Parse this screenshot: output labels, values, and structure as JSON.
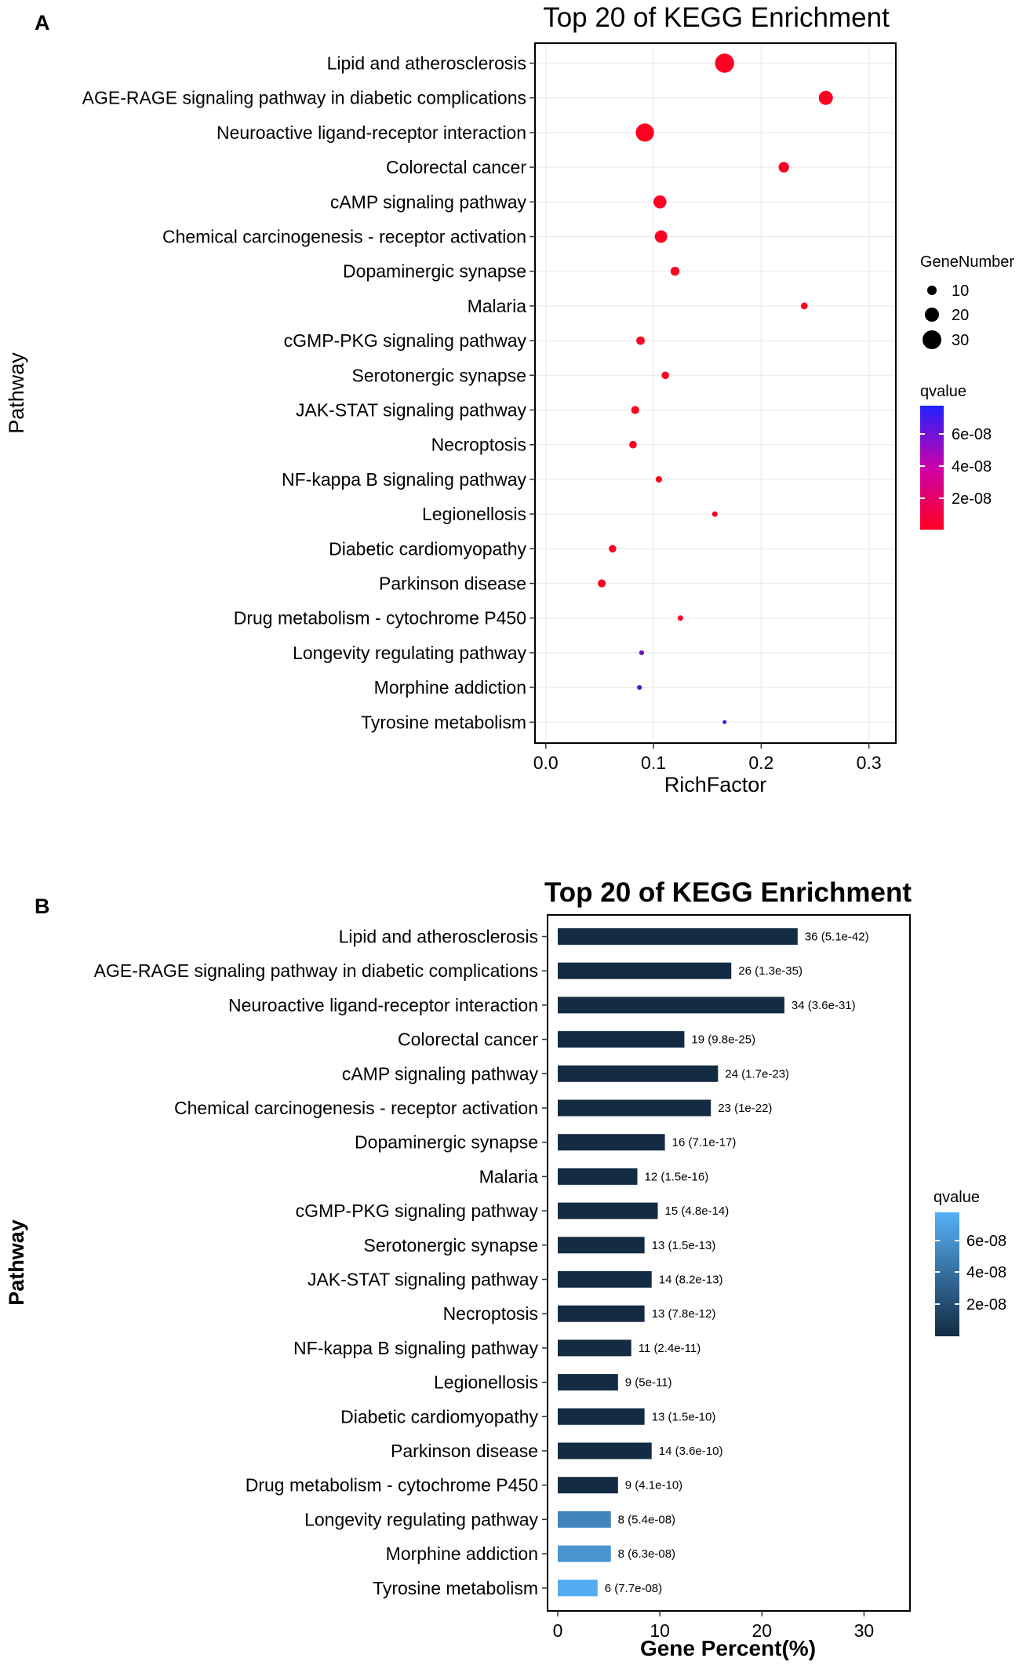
{
  "chart_data": [
    {
      "panel_label": "A",
      "type": "scatter",
      "title": "Top 20 of KEGG Enrichment",
      "xlabel": "RichFactor",
      "ylabel": "Pathway",
      "xlim": [
        -0.01,
        0.325
      ],
      "xticks": [
        "0.0",
        "0.1",
        "0.2",
        "0.3"
      ],
      "xtick_values": [
        0.0,
        0.1,
        0.2,
        0.3
      ],
      "grid": true,
      "size_legend": {
        "title": "GeneNumber",
        "labels": [
          "10",
          "20",
          "30"
        ],
        "values": [
          10,
          20,
          30
        ]
      },
      "color_legend": {
        "title": "qvalue",
        "labels": [
          "6e-08",
          "4e-08",
          "2e-08"
        ],
        "values": [
          6e-08,
          4e-08,
          2e-08
        ],
        "min": 0,
        "max": 8e-08,
        "low_color": "#ff0022",
        "high_color": "#2222ff"
      },
      "categories": [
        "Lipid and atherosclerosis",
        "AGE-RAGE signaling pathway in diabetic complications",
        "Neuroactive ligand-receptor interaction",
        "Colorectal cancer",
        "cAMP signaling pathway",
        "Chemical carcinogenesis - receptor activation",
        "Dopaminergic synapse",
        "Malaria",
        "cGMP-PKG signaling pathway",
        "Serotonergic synapse",
        "JAK-STAT signaling pathway",
        "Necroptosis",
        "NF-kappa B signaling pathway",
        "Legionellosis",
        "Diabetic cardiomyopathy",
        "Parkinson disease",
        "Drug metabolism - cytochrome P450",
        "Longevity regulating pathway",
        "Morphine addiction",
        "Tyrosine metabolism"
      ],
      "x": [
        0.166,
        0.26,
        0.092,
        0.221,
        0.106,
        0.107,
        0.12,
        0.24,
        0.088,
        0.111,
        0.083,
        0.081,
        0.105,
        0.157,
        0.062,
        0.052,
        0.125,
        0.089,
        0.087,
        0.166
      ],
      "gene_number": [
        36,
        26,
        34,
        19,
        24,
        23,
        16,
        12,
        15,
        13,
        14,
        13,
        11,
        9,
        13,
        14,
        9,
        8,
        8,
        6
      ],
      "qvalue": [
        5.1e-42,
        1.3e-35,
        3.6e-31,
        9.8e-25,
        1.7e-23,
        1e-22,
        7.1e-17,
        1.5e-16,
        4.8e-14,
        1.5e-13,
        8.2e-13,
        7.8e-12,
        2.4e-11,
        5e-11,
        1.5e-10,
        3.6e-10,
        4.1e-10,
        5.4e-08,
        6.3e-08,
        7.7e-08
      ]
    },
    {
      "panel_label": "B",
      "type": "bar",
      "orientation": "horizontal",
      "title": "Top 20 of KEGG Enrichment",
      "xlabel": "Gene Percent(%)",
      "ylabel": "Pathway",
      "xlim": [
        -1,
        34.5
      ],
      "xticks": [
        "0",
        "10",
        "20",
        "30"
      ],
      "xtick_values": [
        0,
        10,
        20,
        30
      ],
      "grid": false,
      "color_legend": {
        "title": "qvalue",
        "labels": [
          "6e-08",
          "4e-08",
          "2e-08"
        ],
        "values": [
          6e-08,
          4e-08,
          2e-08
        ],
        "min": 0,
        "max": 8e-08,
        "low_color": "#132b43",
        "high_color": "#56b1f7"
      },
      "categories": [
        "Lipid and atherosclerosis",
        "AGE-RAGE signaling pathway in diabetic complications",
        "Neuroactive ligand-receptor interaction",
        "Colorectal cancer",
        "cAMP signaling pathway",
        "Chemical carcinogenesis - receptor activation",
        "Dopaminergic synapse",
        "Malaria",
        "cGMP-PKG signaling pathway",
        "Serotonergic synapse",
        "JAK-STAT signaling pathway",
        "Necroptosis",
        "NF-kappa B signaling pathway",
        "Legionellosis",
        "Diabetic cardiomyopathy",
        "Parkinson disease",
        "Drug metabolism - cytochrome P450",
        "Longevity regulating pathway",
        "Morphine addiction",
        "Tyrosine metabolism"
      ],
      "values": [
        23.5,
        17.0,
        22.2,
        12.4,
        15.7,
        15.0,
        10.5,
        7.8,
        9.8,
        8.5,
        9.2,
        8.5,
        7.2,
        5.9,
        8.5,
        9.2,
        5.9,
        5.2,
        5.2,
        3.9
      ],
      "qvalue": [
        5.1e-42,
        1.3e-35,
        3.6e-31,
        9.8e-25,
        1.7e-23,
        1e-22,
        7.1e-17,
        1.5e-16,
        4.8e-14,
        1.5e-13,
        8.2e-13,
        7.8e-12,
        2.4e-11,
        5e-11,
        1.5e-10,
        3.6e-10,
        4.1e-10,
        5.4e-08,
        6.3e-08,
        7.7e-08
      ],
      "data_labels": [
        "36 (5.1e-42)",
        "26 (1.3e-35)",
        "34 (3.6e-31)",
        "19 (9.8e-25)",
        "24 (1.7e-23)",
        "23 (1e-22)",
        "16 (7.1e-17)",
        "12 (1.5e-16)",
        "15 (4.8e-14)",
        "13 (1.5e-13)",
        "14 (8.2e-13)",
        "13 (7.8e-12)",
        "11 (2.4e-11)",
        "9 (5e-11)",
        "13 (1.5e-10)",
        "14 (3.6e-10)",
        "9 (4.1e-10)",
        "8 (5.4e-08)",
        "8 (6.3e-08)",
        "6 (7.7e-08)"
      ]
    }
  ]
}
